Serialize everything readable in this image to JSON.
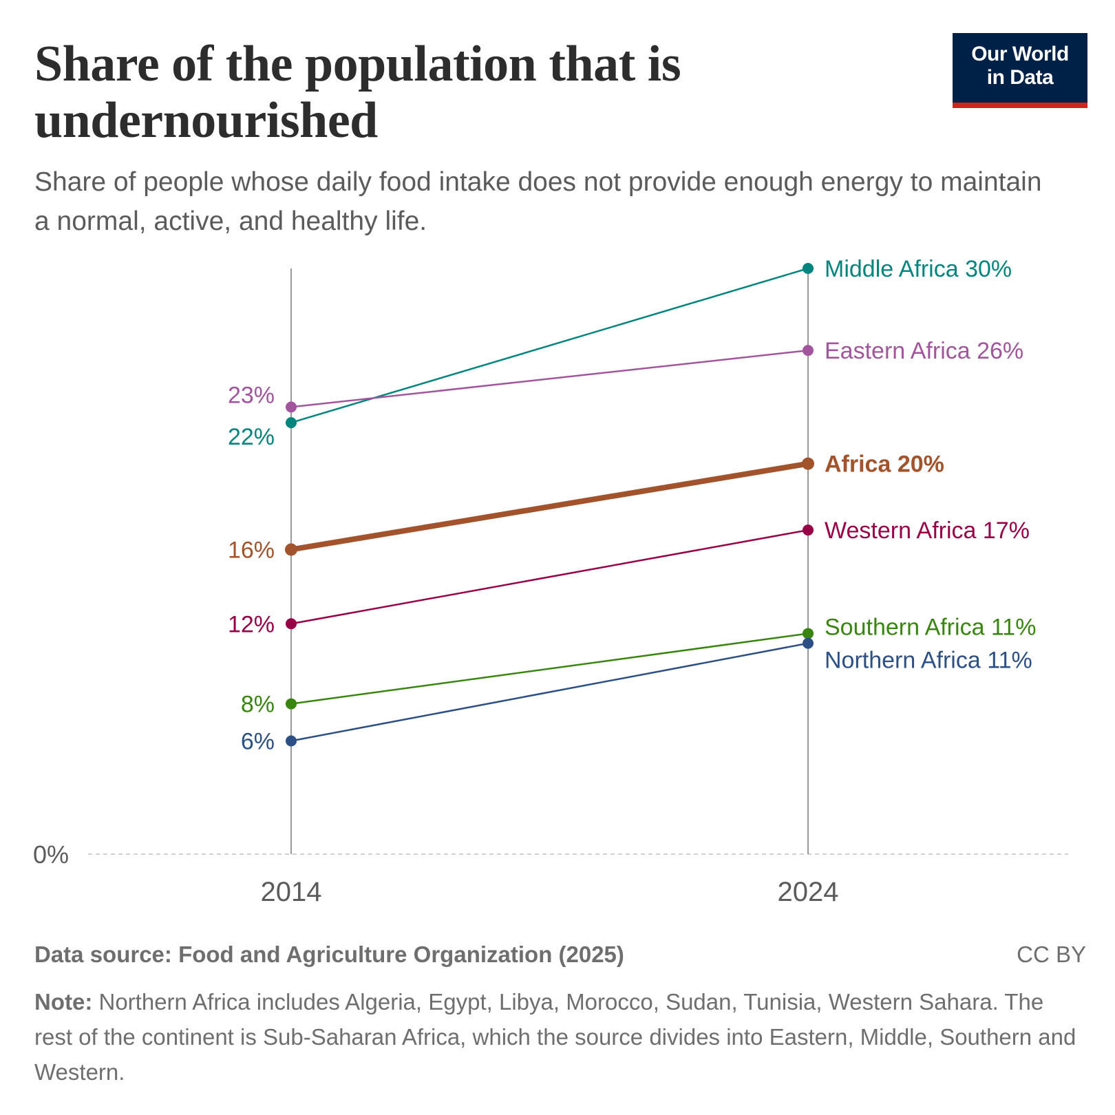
{
  "title": "Share of the population that is undernourished",
  "subtitle": "Share of people whose daily food intake does not provide enough energy to maintain a normal, active, and healthy life.",
  "logo": {
    "line1": "Our World",
    "line2": "in Data",
    "bg": "#002147",
    "accent": "#ce261e"
  },
  "footer": {
    "source": "Data source: Food and Agriculture Organization (2025)",
    "license": "CC BY",
    "note_label": "Note:",
    "note_text": " Northern Africa includes Algeria, Egypt, Libya, Morocco, Sudan, Tunisia, Western Sahara. The rest of the continent is Sub-Saharan Africa, which the source divides into Eastern, Middle, Southern and Western."
  },
  "chart_data": {
    "type": "slope",
    "x": [
      "2014",
      "2024"
    ],
    "ylim": [
      0,
      30
    ],
    "y_tick_labels": [
      "0%"
    ],
    "grid": "dashed baseline at 0%",
    "series": [
      {
        "name": "Middle Africa",
        "values": [
          22.1,
          30.0
        ],
        "start_label": "22%",
        "end_label": "Middle Africa 30%",
        "color": "#00847e",
        "bold": false
      },
      {
        "name": "Eastern Africa",
        "values": [
          22.9,
          25.8
        ],
        "start_label": "23%",
        "end_label": "Eastern Africa 26%",
        "color": "#a2559c",
        "bold": false
      },
      {
        "name": "Africa",
        "values": [
          15.6,
          20.0
        ],
        "start_label": "16%",
        "end_label": "Africa 20%",
        "color": "#a2532b",
        "bold": true
      },
      {
        "name": "Western Africa",
        "values": [
          11.8,
          16.6
        ],
        "start_label": "12%",
        "end_label": "Western Africa 17%",
        "color": "#970046",
        "bold": false
      },
      {
        "name": "Southern Africa",
        "values": [
          7.7,
          11.3
        ],
        "start_label": "8%",
        "end_label": "Southern Africa 11%",
        "color": "#38860f",
        "bold": false
      },
      {
        "name": "Northern Africa",
        "values": [
          5.8,
          10.8
        ],
        "start_label": "6%",
        "end_label": "Northern Africa 11%",
        "color": "#2c4f86",
        "bold": false
      }
    ]
  }
}
